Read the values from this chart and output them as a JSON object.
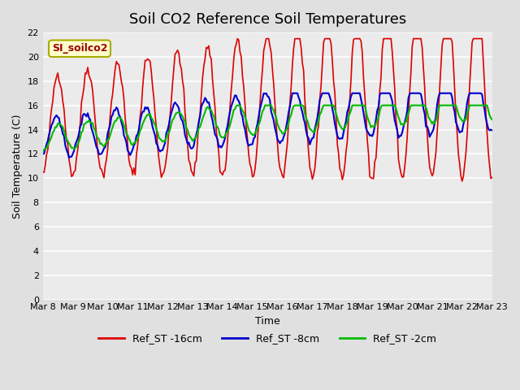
{
  "title": "Soil CO2 Reference Soil Temperatures",
  "xlabel": "Time",
  "ylabel": "Soil Temperature (C)",
  "ylim": [
    0,
    22
  ],
  "yticks": [
    0,
    2,
    4,
    6,
    8,
    10,
    12,
    14,
    16,
    18,
    20,
    22
  ],
  "date_labels": [
    "Mar 8",
    "Mar 9",
    "Mar 10",
    "Mar 11",
    "Mar 12",
    "Mar 13",
    "Mar 14",
    "Mar 15",
    "Mar 16",
    "Mar 17",
    "Mar 18",
    "Mar 19",
    "Mar 20",
    "Mar 21",
    "Mar 22",
    "Mar 23"
  ],
  "legend_entries": [
    "Ref_ST -16cm",
    "Ref_ST -8cm",
    "Ref_ST -2cm"
  ],
  "line_colors": [
    "#dd0000",
    "#0000cc",
    "#00bb00"
  ],
  "bg_color": "#e0e0e0",
  "plot_bg_color": "#ebebeb",
  "watermark_text": "SI_soilco2",
  "watermark_bg": "#ffffcc",
  "watermark_fg": "#990000",
  "title_fontsize": 13,
  "axis_fontsize": 9,
  "tick_fontsize": 8
}
